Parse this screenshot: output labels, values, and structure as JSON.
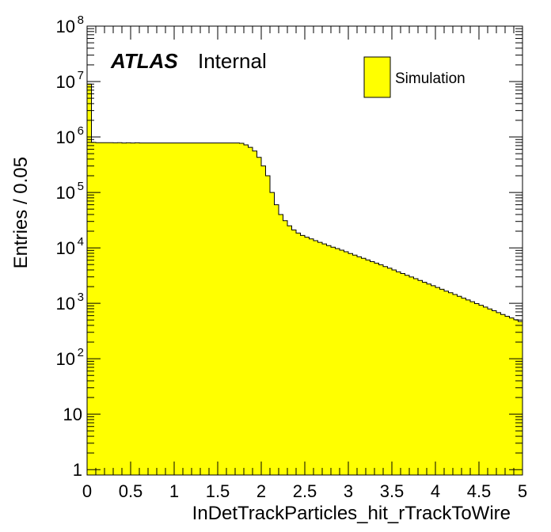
{
  "chart_data": {
    "type": "histogram",
    "title": "",
    "xlabel": "InDetTrackParticles_hit_rTrackToWire",
    "ylabel": "Entries / 0.05",
    "xlim": [
      0,
      5
    ],
    "ylim": [
      0.8,
      100000000
    ],
    "log_y": true,
    "bin_width": 0.05,
    "x_ticks": [
      {
        "value": 0,
        "label": "0"
      },
      {
        "value": 0.5,
        "label": "0.5"
      },
      {
        "value": 1,
        "label": "1"
      },
      {
        "value": 1.5,
        "label": "1.5"
      },
      {
        "value": 2,
        "label": "2"
      },
      {
        "value": 2.5,
        "label": "2.5"
      },
      {
        "value": 3,
        "label": "3"
      },
      {
        "value": 3.5,
        "label": "3.5"
      },
      {
        "value": 4,
        "label": "4"
      },
      {
        "value": 4.5,
        "label": "4.5"
      },
      {
        "value": 5,
        "label": "5"
      }
    ],
    "y_ticks": [
      {
        "value": 1,
        "base": "1",
        "exp": ""
      },
      {
        "value": 10,
        "base": "10",
        "exp": ""
      },
      {
        "value": 100,
        "base": "10",
        "exp": "2"
      },
      {
        "value": 1000,
        "base": "10",
        "exp": "3"
      },
      {
        "value": 10000,
        "base": "10",
        "exp": "4"
      },
      {
        "value": 100000,
        "base": "10",
        "exp": "5"
      },
      {
        "value": 1000000,
        "base": "10",
        "exp": "6"
      },
      {
        "value": 10000000,
        "base": "10",
        "exp": "7"
      },
      {
        "value": 100000000,
        "base": "10",
        "exp": "8"
      }
    ],
    "series": [
      {
        "name": "Simulation",
        "color": "#ffff00",
        "line_color": "#000000",
        "bin_edges_start": 0,
        "values": [
          9000000,
          800000,
          790000,
          790000,
          790000,
          790000,
          785000,
          790000,
          780000,
          785000,
          780000,
          785000,
          780000,
          780000,
          780000,
          780000,
          780000,
          780000,
          780000,
          780000,
          780000,
          780000,
          780000,
          780000,
          780000,
          780000,
          780000,
          780000,
          780000,
          780000,
          780000,
          780000,
          780000,
          780000,
          780000,
          770000,
          720000,
          650000,
          560000,
          430000,
          300000,
          200000,
          100000,
          60000,
          40000,
          31000,
          25000,
          21000,
          18500,
          16800,
          15600,
          14500,
          13500,
          12600,
          11800,
          11000,
          10300,
          9700,
          9100,
          8500,
          7900,
          7400,
          6900,
          6500,
          6050,
          5650,
          5300,
          4950,
          4600,
          4300,
          4000,
          3700,
          3450,
          3200,
          2980,
          2780,
          2580,
          2400,
          2230,
          2080,
          1930,
          1790,
          1660,
          1550,
          1440,
          1340,
          1240,
          1150,
          1070,
          990,
          920,
          855,
          790,
          735,
          680,
          630,
          585,
          545,
          505,
          470
        ]
      }
    ],
    "grid": false,
    "legend_position": "top-right"
  },
  "labels": {
    "atlas": "ATLAS",
    "internal": "Internal"
  },
  "colors": {
    "fill": "#ffff00",
    "line": "#000000",
    "background": "#ffffff"
  }
}
